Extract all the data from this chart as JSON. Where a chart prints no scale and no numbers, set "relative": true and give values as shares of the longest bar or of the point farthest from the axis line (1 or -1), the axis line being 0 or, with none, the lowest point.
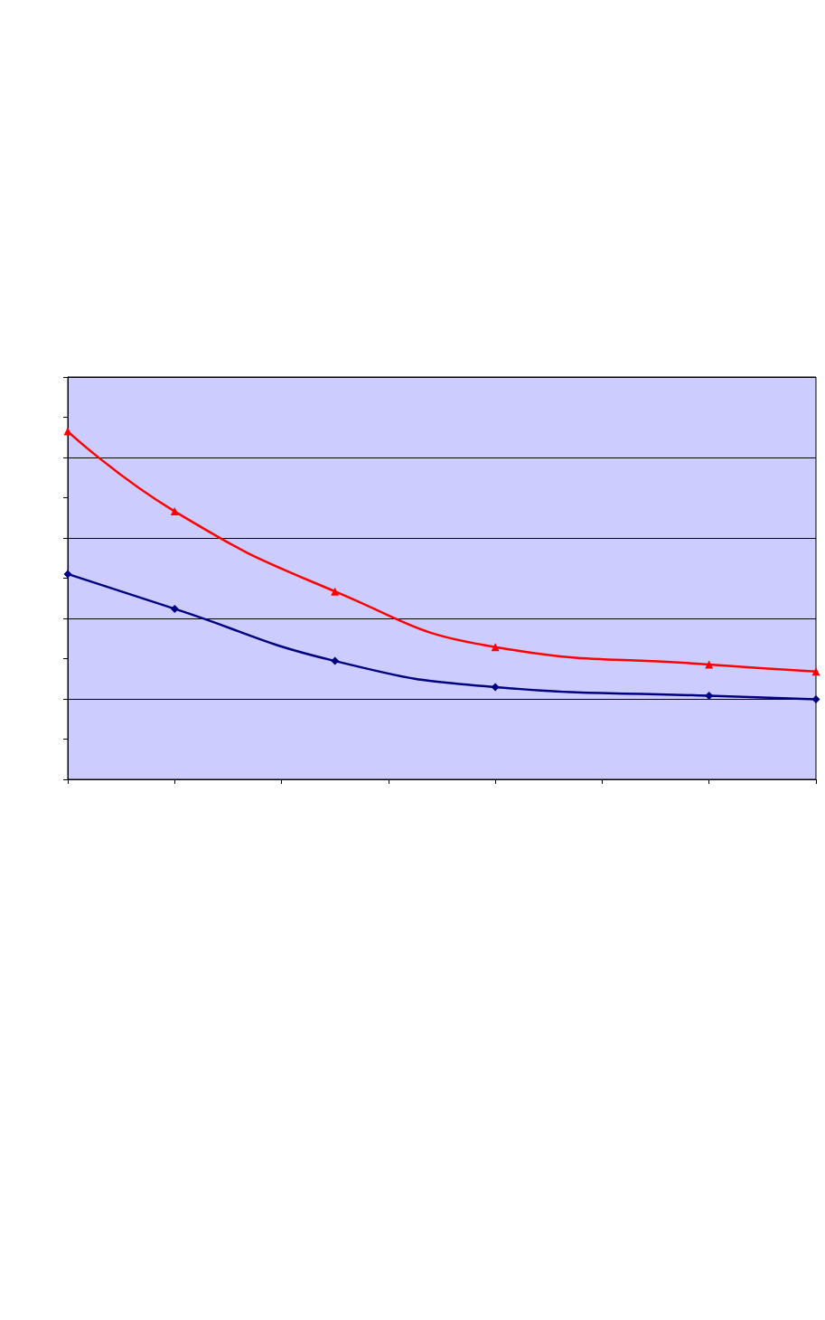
{
  "chart_data": {
    "type": "line",
    "relative": true,
    "grid": "y",
    "categories": [
      null,
      null,
      null,
      null,
      null,
      null,
      null,
      null,
      null,
      null,
      null,
      null,
      null,
      null,
      null
    ],
    "series": [
      {
        "color": "#000080",
        "marker": "diamond",
        "values": [
          0.59,
          null,
          0.49,
          null,
          null,
          0.34,
          null,
          null,
          0.265,
          null,
          null,
          null,
          0.24,
          null,
          0.23
        ]
      },
      {
        "color": "#ff0000",
        "marker": "triangle",
        "values": [
          1,
          null,
          0.77,
          null,
          null,
          0.54,
          null,
          null,
          0.38,
          null,
          null,
          null,
          0.33,
          null,
          0.31
        ]
      }
    ]
  }
}
